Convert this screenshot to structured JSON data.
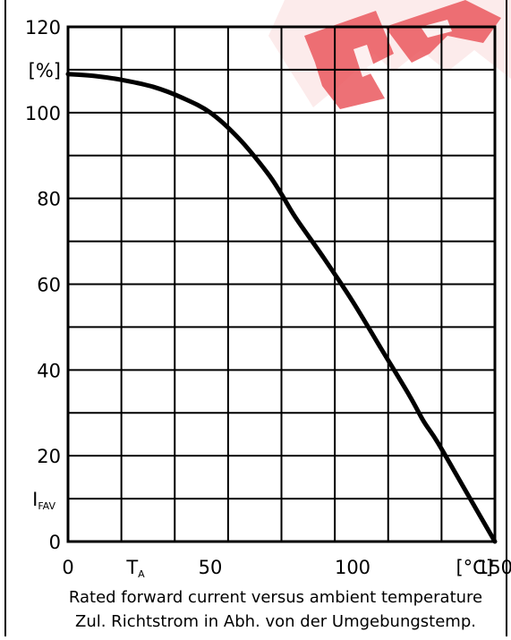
{
  "chart_data": {
    "type": "line",
    "series": [
      {
        "x": [
          0,
          10,
          20,
          30,
          40,
          50,
          60,
          70,
          75,
          80,
          90,
          100,
          110,
          120,
          125,
          130,
          140,
          150
        ],
        "y": [
          109,
          108.5,
          107.5,
          106,
          103.5,
          100,
          94,
          86,
          81,
          75.5,
          66,
          56,
          45,
          34,
          28,
          23,
          11.5,
          0
        ]
      }
    ],
    "xlim": [
      0,
      150
    ],
    "ylim": [
      0,
      120
    ],
    "x_ticks": [
      {
        "value": 0,
        "label": "0"
      },
      {
        "value": 50,
        "label": "50"
      },
      {
        "value": 100,
        "label": "100"
      },
      {
        "value": 150,
        "label": "150"
      }
    ],
    "x_special_label": {
      "base": "T",
      "sub": "A"
    },
    "x_unit": "[°C]",
    "y_ticks": [
      {
        "value": 0,
        "label": "0"
      },
      {
        "value": 20,
        "label": "20"
      },
      {
        "value": 40,
        "label": "40"
      },
      {
        "value": 60,
        "label": "60"
      },
      {
        "value": 80,
        "label": "80"
      },
      {
        "value": 100,
        "label": "100"
      },
      {
        "value": 120,
        "label": "120"
      }
    ],
    "y_special_label": {
      "base": "I",
      "sub": "FAV"
    },
    "y_unit": "[%]",
    "grid": true,
    "caption_en": "Rated forward current versus ambient temperature",
    "caption_de": "Zul. Richtstrom in Abh. von der Umgebungstemp.",
    "watermark_color": "#e8474c"
  }
}
